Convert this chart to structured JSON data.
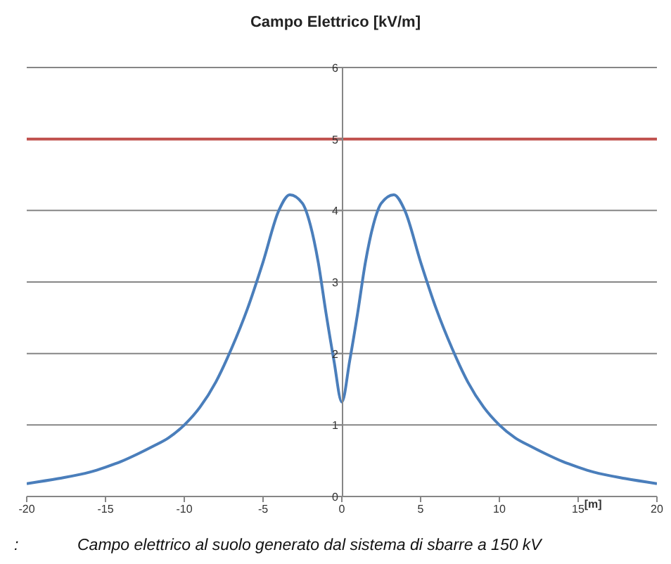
{
  "chart_data": {
    "type": "line",
    "title": "Campo Elettrico [kV/m]",
    "xlabel": "[m]",
    "annotations": [
      ":",
      "Campo elettrico al suolo generato dal sistema di sbarre a 150 kV"
    ],
    "x": [
      -20,
      -18,
      -16,
      -15,
      -14,
      -13,
      -12,
      -11,
      -10,
      -9,
      -8,
      -7,
      -6,
      -5,
      -4,
      -3.3,
      -2.5,
      -2,
      -1.5,
      -1,
      -0.5,
      0,
      0.5,
      1,
      1.5,
      2,
      2.5,
      3.3,
      4,
      5,
      6,
      7,
      8,
      9,
      10,
      11,
      12,
      13,
      14,
      15,
      16,
      18,
      20
    ],
    "series": [
      {
        "color": "#4a7ebb",
        "values": [
          0.18,
          0.25,
          0.34,
          0.41,
          0.49,
          0.59,
          0.7,
          0.82,
          1.0,
          1.25,
          1.6,
          2.07,
          2.62,
          3.28,
          4.0,
          4.22,
          4.1,
          3.8,
          3.28,
          2.56,
          1.9,
          1.32,
          1.9,
          2.56,
          3.28,
          3.8,
          4.1,
          4.22,
          4.0,
          3.28,
          2.62,
          2.07,
          1.6,
          1.25,
          1.0,
          0.82,
          0.7,
          0.59,
          0.49,
          0.41,
          0.34,
          0.25,
          0.18
        ]
      }
    ],
    "xlim": [
      -20,
      20
    ],
    "xticks": [
      -20,
      -15,
      -10,
      -5,
      0,
      5,
      10,
      15,
      20
    ],
    "ylim": [
      0,
      6
    ],
    "yticks": [
      0,
      1,
      2,
      3,
      4,
      5,
      6
    ],
    "ref_lines": [
      {
        "axis": "y",
        "value": 5,
        "color": "#c0504d"
      }
    ],
    "grid": "y",
    "marker": "none",
    "line_style": "solid"
  }
}
